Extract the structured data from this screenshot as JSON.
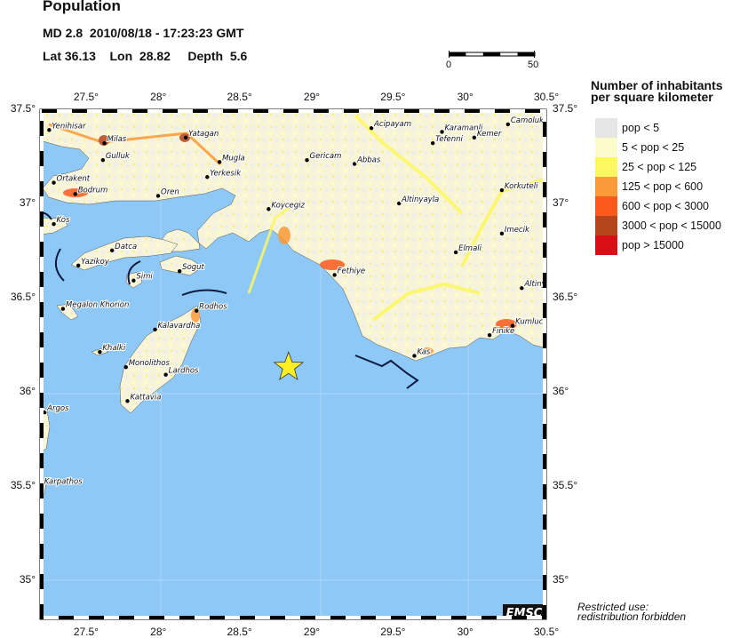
{
  "header": {
    "title": "Population",
    "line1": "MD 2.8  2010/08/18 - 17:23:23 GMT",
    "line2": "Lat 36.13    Lon  28.82     Depth  5.6"
  },
  "event": {
    "lat": 36.13,
    "lon": 28.82,
    "depth": 5.6,
    "magnitude": "MD 2.8",
    "marker": "star-icon",
    "marker_color": "#ffee22"
  },
  "scale_bar": {
    "labels": [
      "0",
      "50"
    ]
  },
  "map": {
    "lon_range": [
      27.2,
      30.5
    ],
    "lat_range": [
      34.79,
      37.5
    ],
    "sea_color": "#8ec8f6",
    "lon_ticks_top": [
      "27.5°",
      "28°",
      "28.5°",
      "29°",
      "29.5°",
      "30°",
      "30.5°"
    ],
    "lon_ticks_bottom": [
      "27.5°",
      "28°",
      "28.5°",
      "29°",
      "29.5°",
      "30°",
      "30.5°"
    ],
    "lat_ticks_left": [
      "37.5°",
      "37°",
      "36.5°",
      "36°",
      "35.5°",
      "35°"
    ],
    "lat_ticks_right": [
      "37.5°",
      "37°",
      "36.5°",
      "36°",
      "35.5°",
      "35°"
    ],
    "logo": "EMSC",
    "cities": [
      {
        "name": "Yenihisar",
        "lon": 27.26,
        "lat": 37.39
      },
      {
        "name": "Milas",
        "lon": 27.62,
        "lat": 37.32
      },
      {
        "name": "Yatagan",
        "lon": 28.15,
        "lat": 37.35
      },
      {
        "name": "Gulluk",
        "lon": 27.61,
        "lat": 37.23
      },
      {
        "name": "Mugla",
        "lon": 28.37,
        "lat": 37.22
      },
      {
        "name": "Yerkesik",
        "lon": 28.29,
        "lat": 37.14
      },
      {
        "name": "Ortakent",
        "lon": 27.29,
        "lat": 37.11
      },
      {
        "name": "Bodrum",
        "lon": 27.43,
        "lat": 37.05
      },
      {
        "name": "Oren",
        "lon": 27.97,
        "lat": 37.04
      },
      {
        "name": "Kos",
        "lon": 27.29,
        "lat": 36.89
      },
      {
        "name": "Koycegiz",
        "lon": 28.69,
        "lat": 36.97
      },
      {
        "name": "Gericam",
        "lon": 28.94,
        "lat": 37.23
      },
      {
        "name": "Abbas",
        "lon": 29.25,
        "lat": 37.21
      },
      {
        "name": "Acipayam",
        "lon": 29.36,
        "lat": 37.4
      },
      {
        "name": "Karamanli",
        "lon": 29.82,
        "lat": 37.38
      },
      {
        "name": "Tefenni",
        "lon": 29.76,
        "lat": 37.32
      },
      {
        "name": "Kemer",
        "lon": 30.03,
        "lat": 37.35
      },
      {
        "name": "Camoluk",
        "lon": 30.25,
        "lat": 37.42
      },
      {
        "name": "Korkuteli",
        "lon": 30.21,
        "lat": 37.07
      },
      {
        "name": "Altinyayla",
        "lon": 29.54,
        "lat": 37.0
      },
      {
        "name": "Imecik",
        "lon": 30.21,
        "lat": 36.84
      },
      {
        "name": "Elmali",
        "lon": 29.91,
        "lat": 36.74
      },
      {
        "name": "Fethiye",
        "lon": 29.12,
        "lat": 36.62
      },
      {
        "name": "Altiny",
        "lon": 30.34,
        "lat": 36.55
      },
      {
        "name": "Kumluca",
        "lon": 30.28,
        "lat": 36.35
      },
      {
        "name": "Finike",
        "lon": 30.13,
        "lat": 36.3
      },
      {
        "name": "Kas",
        "lon": 29.64,
        "lat": 36.19
      },
      {
        "name": "Datca",
        "lon": 27.67,
        "lat": 36.75
      },
      {
        "name": "Yazikoy",
        "lon": 27.45,
        "lat": 36.67
      },
      {
        "name": "Sogut",
        "lon": 28.11,
        "lat": 36.64
      },
      {
        "name": "Simi",
        "lon": 27.81,
        "lat": 36.59
      },
      {
        "name": "Megalon Khorion",
        "lon": 27.35,
        "lat": 36.44
      },
      {
        "name": "Rodhos",
        "lon": 28.22,
        "lat": 36.43
      },
      {
        "name": "Kalavardha",
        "lon": 27.95,
        "lat": 36.33
      },
      {
        "name": "Khalki",
        "lon": 27.59,
        "lat": 36.21
      },
      {
        "name": "Monolithos",
        "lon": 27.76,
        "lat": 36.13
      },
      {
        "name": "Lardhos",
        "lon": 28.02,
        "lat": 36.09
      },
      {
        "name": "Kattavia",
        "lon": 27.77,
        "lat": 35.95
      },
      {
        "name": "Argos",
        "lon": 27.23,
        "lat": 35.89
      },
      {
        "name": "Karpathos",
        "lon": 27.21,
        "lat": 35.5
      }
    ]
  },
  "legend": {
    "title_line1": "Number of inhabitants",
    "title_line2": "per square kilometer",
    "items": [
      {
        "label": "pop < 5",
        "color": "#e6e6e6"
      },
      {
        "label": "5 < pop < 25",
        "color": "#fbfbcc"
      },
      {
        "label": "25 < pop < 125",
        "color": "#fdf860"
      },
      {
        "label": "125 < pop < 600",
        "color": "#fb9a38"
      },
      {
        "label": "600 < pop < 3000",
        "color": "#fc5a1c"
      },
      {
        "label": "3000 < pop < 15000",
        "color": "#b5461b"
      },
      {
        "label": "pop > 15000",
        "color": "#d81016"
      }
    ]
  },
  "footer": {
    "line1": "Restricted use:",
    "line2": "redistribution forbidden"
  }
}
